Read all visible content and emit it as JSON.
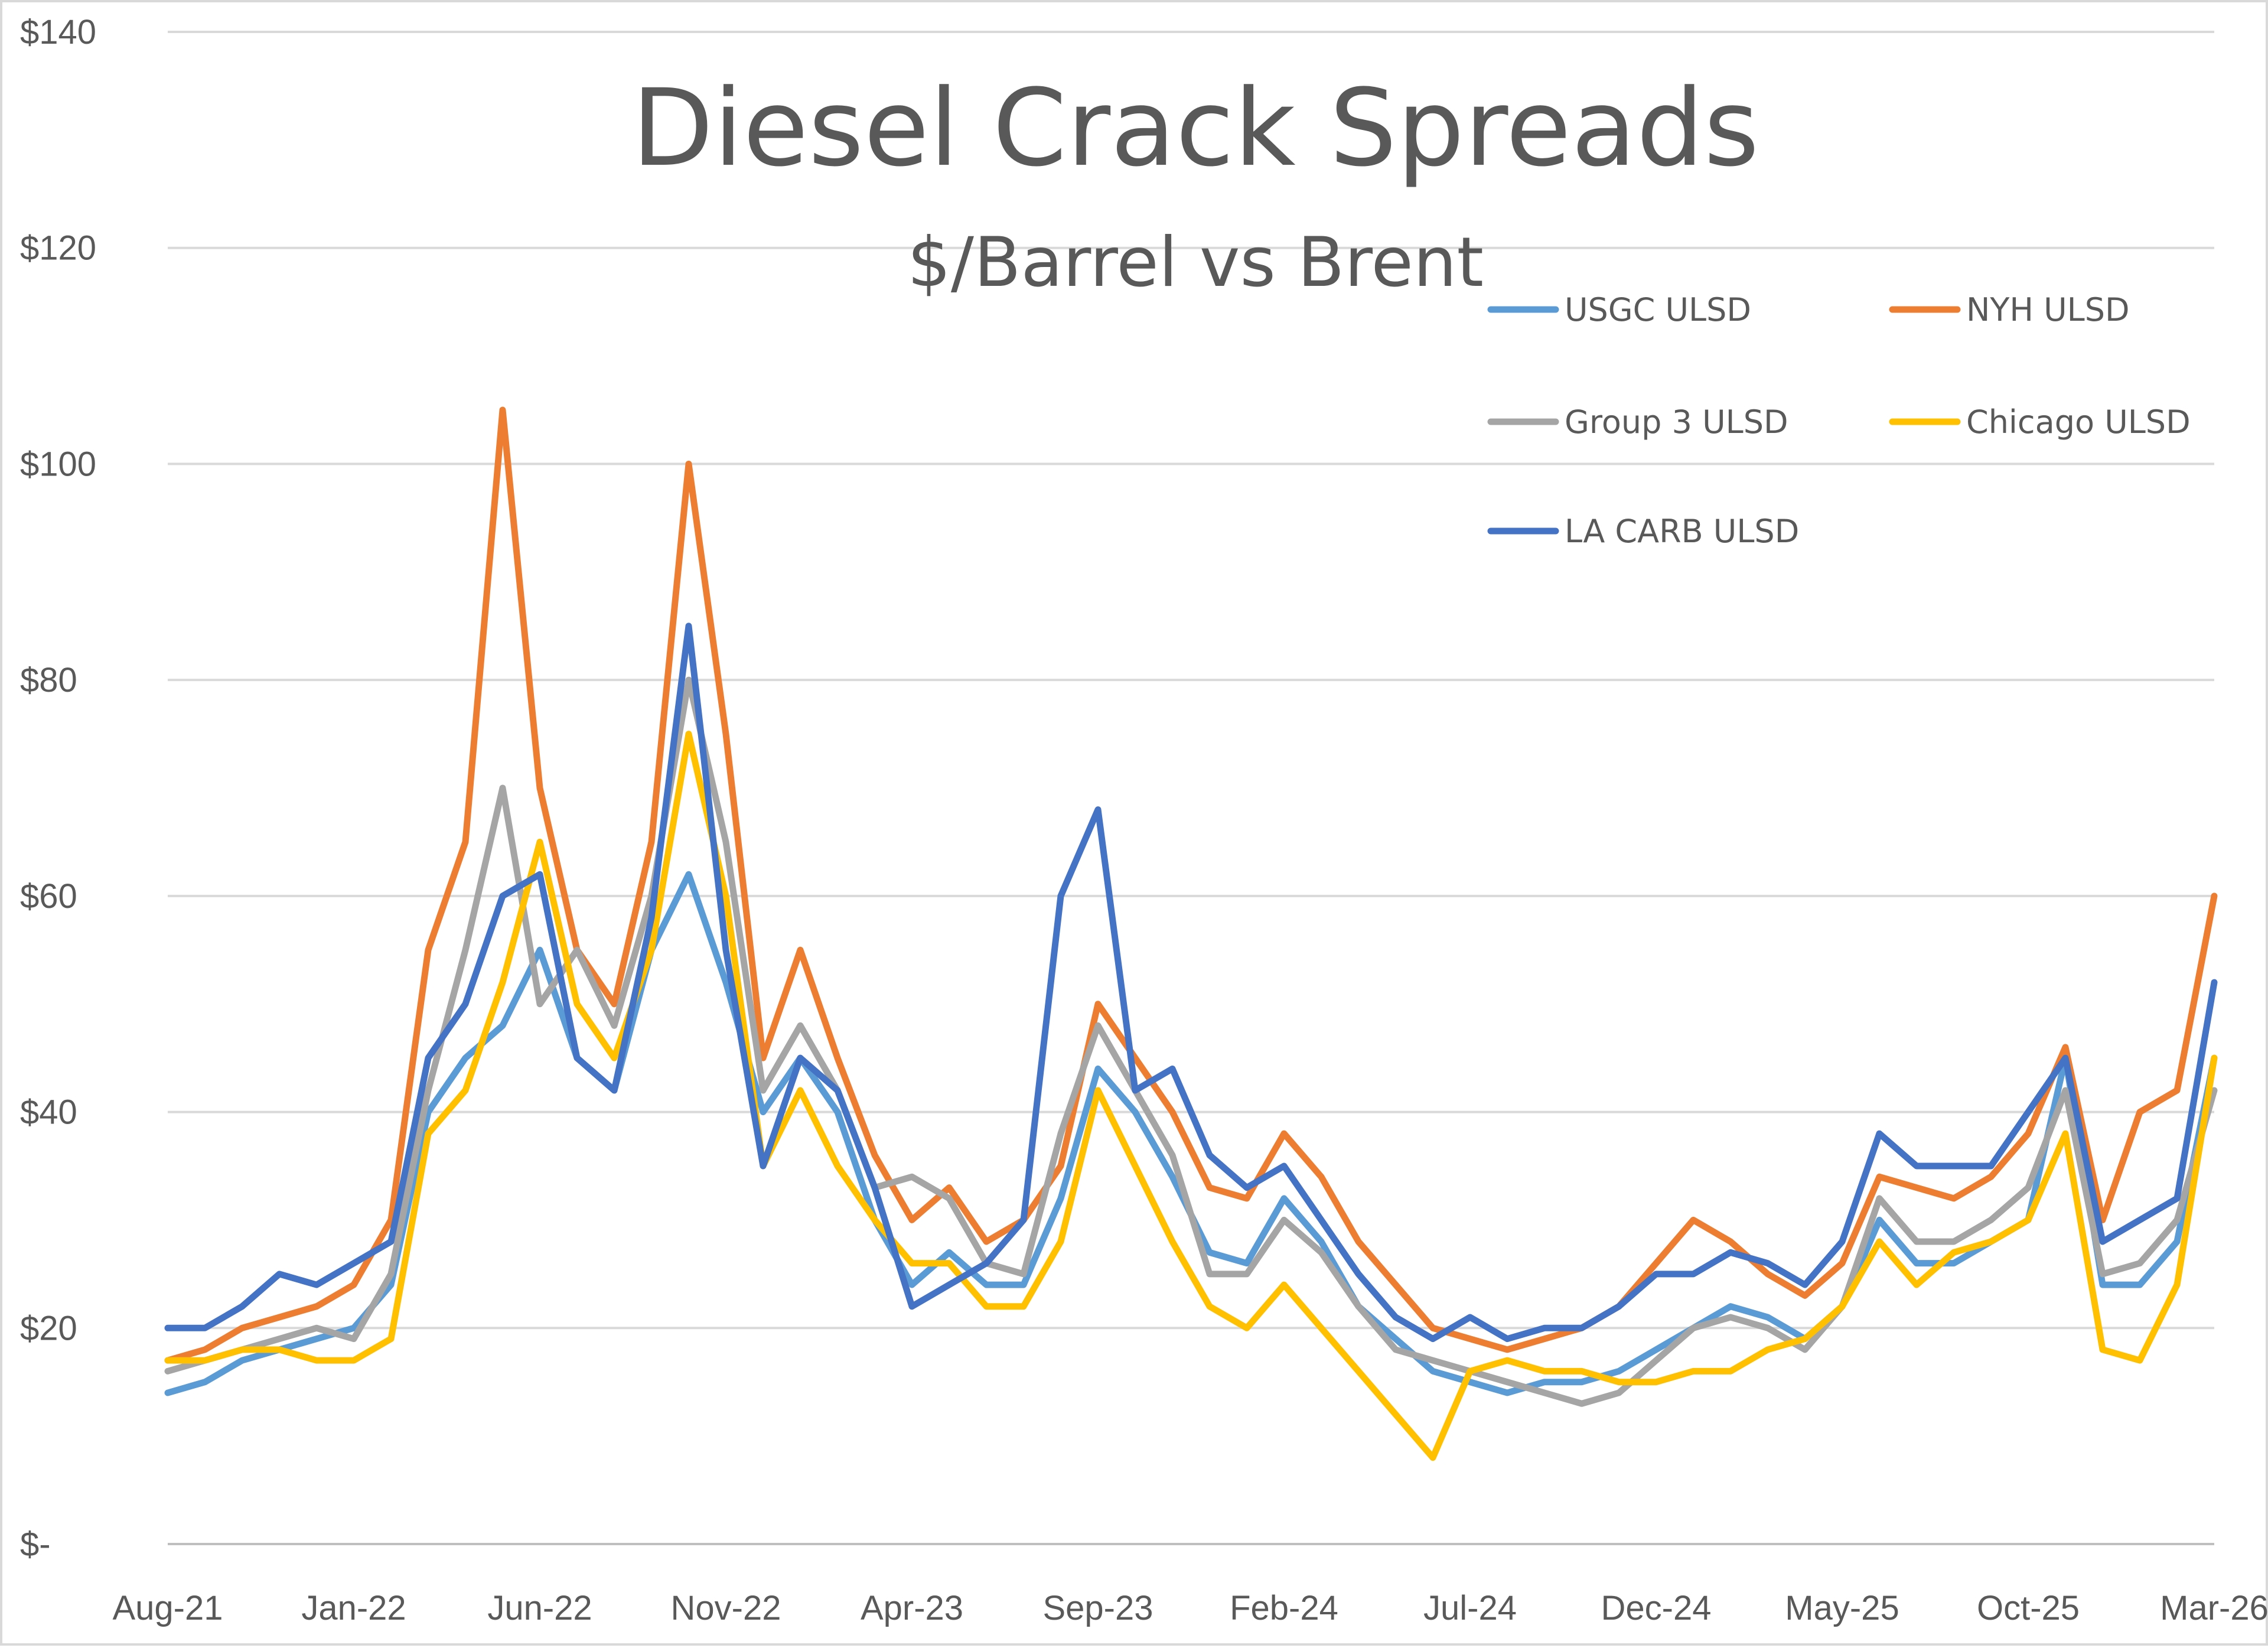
{
  "chart_data": {
    "type": "line",
    "title": "Diesel Crack Spreads",
    "subtitle": "$/Barrel vs Brent",
    "xlabel": "",
    "ylabel": "",
    "ylim": [
      0,
      140
    ],
    "xlim": [
      "Aug-21",
      "Mar-26"
    ],
    "grid": true,
    "legend_position": "top-right",
    "y_ticks": [
      {
        "value": 0,
        "label": "$-"
      },
      {
        "value": 20,
        "label": "$20"
      },
      {
        "value": 40,
        "label": "$40"
      },
      {
        "value": 60,
        "label": "$60"
      },
      {
        "value": 80,
        "label": "$80"
      },
      {
        "value": 100,
        "label": "$100"
      },
      {
        "value": 120,
        "label": "$120"
      },
      {
        "value": 140,
        "label": "$140"
      }
    ],
    "x_ticks": [
      "Aug-21",
      "Jan-22",
      "Jun-22",
      "Nov-22",
      "Apr-23",
      "Sep-23",
      "Feb-24",
      "Jul-24",
      "Dec-24",
      "May-25",
      "Oct-25",
      "Mar-26"
    ],
    "x": [
      "Aug-21",
      "Sep-21",
      "Oct-21",
      "Nov-21",
      "Dec-21",
      "Jan-22",
      "Feb-22",
      "Mar-22",
      "Apr-22",
      "May-22",
      "Jun-22",
      "Jul-22",
      "Aug-22",
      "Sep-22",
      "Oct-22",
      "Nov-22",
      "Dec-22",
      "Jan-23",
      "Feb-23",
      "Mar-23",
      "Apr-23",
      "May-23",
      "Jun-23",
      "Jul-23",
      "Aug-23",
      "Sep-23",
      "Oct-23",
      "Nov-23",
      "Dec-23",
      "Jan-24",
      "Feb-24",
      "Mar-24",
      "Apr-24",
      "May-24",
      "Jun-24",
      "Jul-24",
      "Aug-24",
      "Sep-24",
      "Oct-24",
      "Nov-24",
      "Dec-24",
      "Jan-25",
      "Feb-25",
      "Mar-25",
      "Apr-25",
      "May-25",
      "Jun-25",
      "Jul-25",
      "Aug-25",
      "Sep-25",
      "Oct-25",
      "Nov-25",
      "Dec-25",
      "Jan-26",
      "Feb-26",
      "Mar-26"
    ],
    "series": [
      {
        "name": "USGC ULSD",
        "color": "#5b9bd5",
        "values": [
          14,
          15,
          17,
          18,
          19,
          20,
          24,
          40,
          45,
          48,
          55,
          45,
          42,
          55,
          62,
          52,
          40,
          45,
          40,
          30,
          24,
          27,
          24,
          24,
          32,
          44,
          40,
          34,
          27,
          26,
          32,
          28,
          22,
          19,
          16,
          15,
          14,
          15,
          15,
          16,
          18,
          20,
          22,
          21,
          19,
          22,
          30,
          26,
          26,
          28,
          30,
          45,
          24,
          24,
          28,
          45
        ]
      },
      {
        "name": "NYH ULSD",
        "color": "#ed7d31",
        "values": [
          17,
          18,
          20,
          21,
          22,
          24,
          30,
          55,
          65,
          105,
          70,
          55,
          50,
          65,
          100,
          75,
          45,
          55,
          45,
          36,
          30,
          33,
          28,
          30,
          35,
          50,
          45,
          40,
          33,
          32,
          38,
          34,
          28,
          24,
          20,
          19,
          18,
          19,
          20,
          22,
          26,
          30,
          28,
          25,
          23,
          26,
          34,
          33,
          32,
          34,
          38,
          46,
          30,
          40,
          42,
          60
        ]
      },
      {
        "name": "Group 3 ULSD",
        "color": "#a5a5a5",
        "values": [
          16,
          17,
          18,
          19,
          20,
          19,
          25,
          42,
          55,
          70,
          50,
          55,
          48,
          60,
          80,
          65,
          42,
          48,
          42,
          33,
          34,
          32,
          26,
          25,
          38,
          48,
          42,
          36,
          25,
          25,
          30,
          27,
          22,
          18,
          17,
          16,
          15,
          14,
          13,
          14,
          17,
          20,
          21,
          20,
          18,
          22,
          32,
          28,
          28,
          30,
          33,
          42,
          25,
          26,
          30,
          42
        ]
      },
      {
        "name": "Chicago ULSD",
        "color": "#ffc000",
        "values": [
          17,
          17,
          18,
          18,
          17,
          17,
          19,
          38,
          42,
          52,
          65,
          50,
          45,
          55,
          75,
          60,
          35,
          42,
          35,
          30,
          26,
          26,
          22,
          22,
          28,
          42,
          35,
          28,
          22,
          20,
          24,
          20,
          16,
          12,
          8,
          16,
          17,
          16,
          16,
          15,
          15,
          16,
          16,
          18,
          19,
          22,
          28,
          24,
          27,
          28,
          30,
          38,
          18,
          17,
          24,
          45
        ]
      },
      {
        "name": "LA CARB ULSD",
        "color": "#4472c4",
        "values": [
          20,
          20,
          22,
          25,
          24,
          26,
          28,
          45,
          50,
          60,
          62,
          45,
          42,
          58,
          85,
          55,
          35,
          45,
          42,
          33,
          22,
          24,
          26,
          30,
          60,
          68,
          42,
          44,
          36,
          33,
          35,
          30,
          25,
          21,
          19,
          21,
          19,
          20,
          20,
          22,
          25,
          25,
          27,
          26,
          24,
          28,
          38,
          35,
          35,
          35,
          40,
          45,
          28,
          30,
          32,
          52
        ]
      }
    ]
  }
}
